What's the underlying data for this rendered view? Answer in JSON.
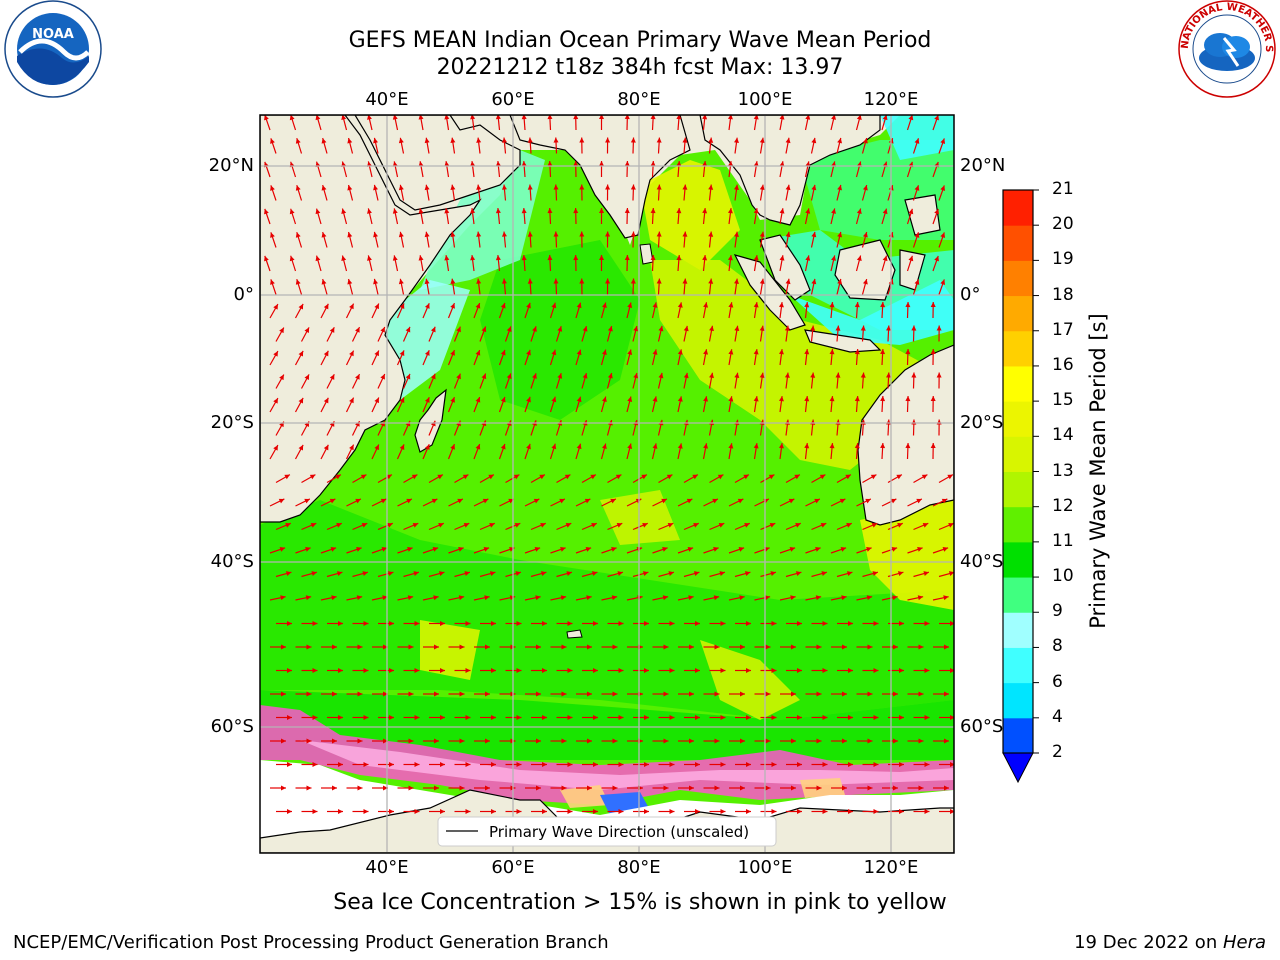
{
  "title": {
    "line1": "GEFS MEAN Indian Ocean Primary Wave Mean Period",
    "line2": "20221212 t18z 384h fcst   Max: 13.97"
  },
  "map": {
    "lon_ticks_top": [
      "40°E",
      "60°E",
      "80°E",
      "100°E",
      "120°E"
    ],
    "lon_ticks_bottom": [
      "40°E",
      "60°E",
      "80°E",
      "100°E",
      "120°E"
    ],
    "lat_ticks_left": [
      "20°N",
      "0°",
      "20°S",
      "40°S",
      "60°S"
    ],
    "lat_ticks_right": [
      "20°N",
      "0°",
      "20°S",
      "40°S",
      "60°S"
    ],
    "legend_label": "Primary Wave Direction (unscaled)",
    "land_color": "#efeddc",
    "arrow_color": "#e60000",
    "ice_colors": [
      "#ff55cc",
      "#ffb3e6",
      "#ffd27f",
      "#ffffff"
    ]
  },
  "colorbar": {
    "label": "Primary Wave Mean Period [s]",
    "ticks": [
      "2",
      "4",
      "6",
      "8",
      "9",
      "10",
      "11",
      "12",
      "13",
      "14",
      "15",
      "16",
      "17",
      "18",
      "19",
      "20",
      "21"
    ],
    "colors": [
      "#0050ff",
      "#00e5ff",
      "#40ffff",
      "#a0ffff",
      "#40ff80",
      "#00e000",
      "#60f000",
      "#b0f500",
      "#d8f500",
      "#ecf500",
      "#ffff00",
      "#ffd000",
      "#ffaa00",
      "#ff8000",
      "#ff5000",
      "#ff2000"
    ],
    "under_color": "#0000ff"
  },
  "caption": "Sea Ice Concentration > 15% is shown in pink to yellow",
  "footer": {
    "left": "NCEP/EMC/Verification Post Processing Product Generation Branch",
    "right_prefix": "19 Dec 2022 on ",
    "right_host": "Hera"
  },
  "logos": {
    "noaa_text": "NOAA",
    "nws_text": "NATIONAL WEATHER SERVICE"
  }
}
